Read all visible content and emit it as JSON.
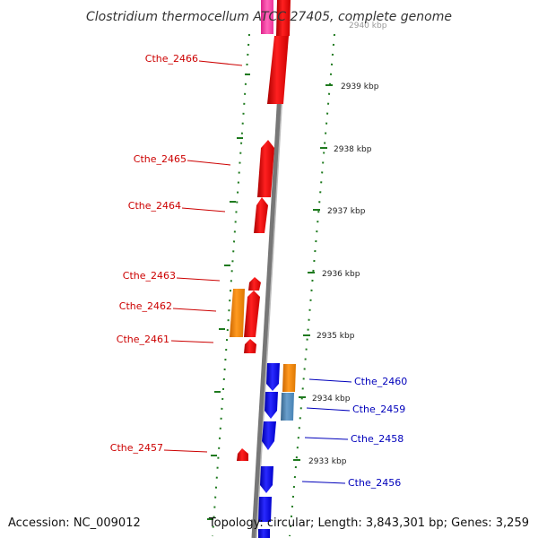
{
  "title": "Clostridium thermocellum ATCC 27405, complete genome",
  "footer": {
    "accession": "Accession: NC_009012",
    "topology": "Topology: circular; Length: 3,843,301 bp; Genes: 3,259"
  },
  "kbp_labels": [
    "2940 kbp",
    "2939 kbp",
    "2938 kbp",
    "2937 kbp",
    "2936 kbp",
    "2935 kbp",
    "2934 kbp",
    "2933 kbp"
  ],
  "genes_left": [
    "Cthe_2466",
    "Cthe_2465",
    "Cthe_2464",
    "Cthe_2463",
    "Cthe_2462",
    "Cthe_2461",
    "Cthe_2457"
  ],
  "genes_right": [
    "Cthe_2460",
    "Cthe_2459",
    "Cthe_2458",
    "Cthe_2456"
  ],
  "colors": {
    "forward_genes": "#ff0000",
    "reverse_genes": "#0000ff",
    "orange_genes": "#ff8800",
    "steelblue_gene": "#4682b4",
    "magenta_gene": "#ff44aa",
    "backbone": "#777777",
    "gc_dots": "#1f7a1f",
    "left_labels": "#cc0000",
    "right_labels": "#0000bb"
  }
}
